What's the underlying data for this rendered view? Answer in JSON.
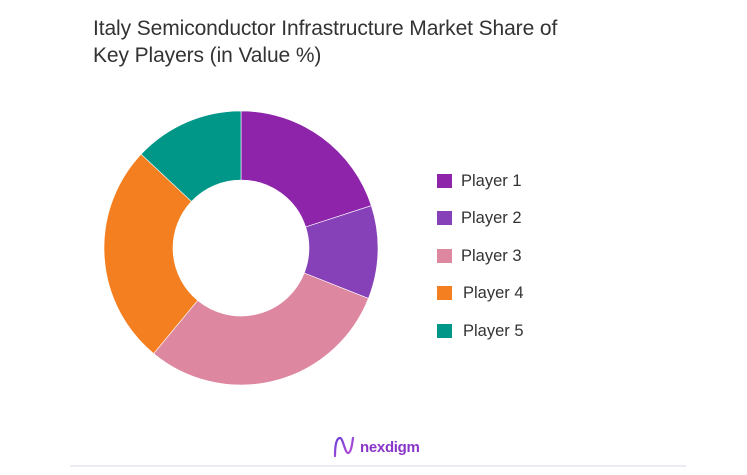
{
  "title": {
    "line1": "Italy Semiconductor Infrastructure Market Share of",
    "line2": "Key Players (in Value %)"
  },
  "legend": {
    "items": [
      {
        "label": "Player 1",
        "color": "#8E24AA"
      },
      {
        "label": "Player 2",
        "color": "#8641B8"
      },
      {
        "label": "Player 3",
        "color": "#DE87A0"
      },
      {
        "label": "Player 4",
        "color": "#F47F20"
      },
      {
        "label": "Player 5",
        "color": "#009688"
      }
    ]
  },
  "footer": {
    "brand": "nexdigm",
    "brand_color": "#8a35c9"
  },
  "chart_data": {
    "type": "pie",
    "variant": "donut",
    "title": "Italy Semiconductor Infrastructure Market Share of Key Players (in Value %)",
    "categories": [
      "Player 1",
      "Player 2",
      "Player 3",
      "Player 4",
      "Player 5"
    ],
    "values": [
      20,
      11,
      30,
      26,
      13
    ],
    "colors": [
      "#8E24AA",
      "#8641B8",
      "#DE87A0",
      "#F47F20",
      "#009688"
    ],
    "unit": "%",
    "start_angle_deg": 0,
    "direction": "clockwise",
    "legend_position": "right",
    "data_labels": false
  }
}
